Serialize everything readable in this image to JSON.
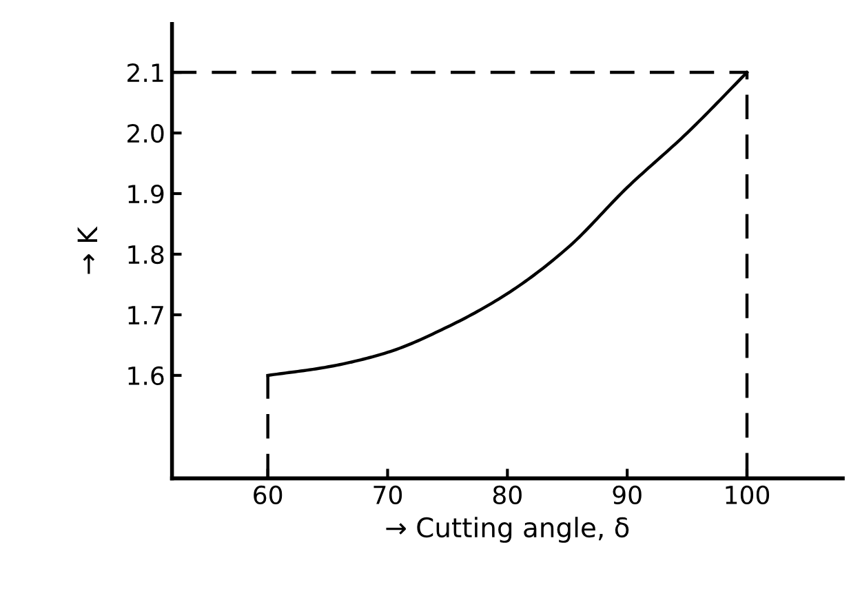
{
  "chart_data": {
    "type": "line",
    "xlabel": "→ Cutting angle, δ",
    "ylabel": "→ K",
    "xlim": [
      52,
      108
    ],
    "ylim": [
      1.43,
      2.18
    ],
    "xticks": [
      60,
      70,
      80,
      90,
      100
    ],
    "yticks": [
      1.6,
      1.7,
      1.8,
      1.9,
      {
        "value": 2.0,
        "label": "2.0"
      },
      2.1
    ],
    "grid": false,
    "legend": false,
    "series": [
      {
        "color": "#000000",
        "line_style": "solid",
        "x": [
          60,
          65,
          70,
          75,
          80,
          85,
          90,
          95,
          100
        ],
        "values": [
          1.6,
          1.614,
          1.638,
          1.68,
          1.735,
          1.81,
          1.91,
          2.0,
          2.1
        ]
      },
      {
        "color": "#000000",
        "line_style": "dashed",
        "x": [
          60,
          60
        ],
        "values": [
          1.43,
          1.6
        ]
      },
      {
        "color": "#000000",
        "line_style": "dashed",
        "x": [
          52,
          100,
          100
        ],
        "values": [
          2.1,
          2.1,
          1.43
        ]
      }
    ]
  }
}
